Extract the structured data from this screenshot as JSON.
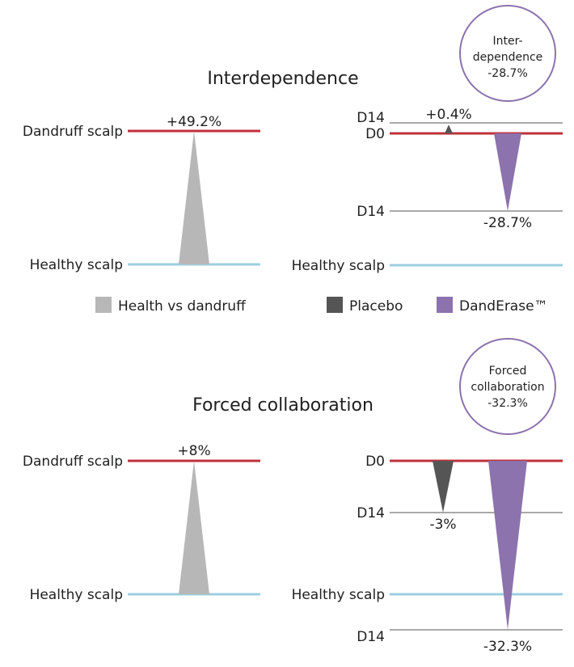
{
  "chart_data": [
    {
      "type": "bar",
      "title": "Interdependence",
      "scale_labels": {
        "top": "Dandruff scalp",
        "bottom": "Healthy scalp"
      },
      "series": [
        {
          "name": "Health vs dandruff",
          "value": 49.2,
          "label": "+49.2%"
        }
      ]
    },
    {
      "type": "bar",
      "title": "",
      "scale_labels": {
        "bottom": "Healthy scalp"
      },
      "baseline_label": "D0",
      "day_labels": {
        "placebo": "D14",
        "active": "D14"
      },
      "series": [
        {
          "name": "Placebo",
          "value": 0.4,
          "label": "+0.4%"
        },
        {
          "name": "DandErase™",
          "value": -28.7,
          "label": "-28.7%"
        }
      ],
      "callout": {
        "lines": [
          "Inter-",
          "dependence",
          "-28.7%"
        ]
      }
    },
    {
      "type": "bar",
      "title": "Forced collaboration",
      "scale_labels": {
        "top": "Dandruff scalp",
        "bottom": "Healthy scalp"
      },
      "series": [
        {
          "name": "Health vs dandruff",
          "value": 8,
          "label": "+8%"
        }
      ]
    },
    {
      "type": "bar",
      "title": "",
      "scale_labels": {
        "bottom": "Healthy scalp"
      },
      "baseline_label": "D0",
      "day_labels": {
        "placebo": "D14",
        "active": "D14"
      },
      "series": [
        {
          "name": "Placebo",
          "value": -3,
          "label": "-3%"
        },
        {
          "name": "DandErase™",
          "value": -32.3,
          "label": "-32.3%"
        }
      ],
      "callout": {
        "lines": [
          "Forced",
          "collaboration",
          "-32.3%"
        ]
      }
    }
  ],
  "legend": {
    "items": [
      {
        "label": "Health vs dandruff",
        "color": "#b7b7b7"
      },
      {
        "label": "Placebo",
        "color": "#555555"
      },
      {
        "label": "DandErase™",
        "color": "#8c73ad"
      }
    ]
  },
  "colors": {
    "dandruff_line": "#c0303a",
    "healthy_line": "#9ccfdf",
    "gray_line": "#777777",
    "callout_border": "#8c73ad"
  }
}
